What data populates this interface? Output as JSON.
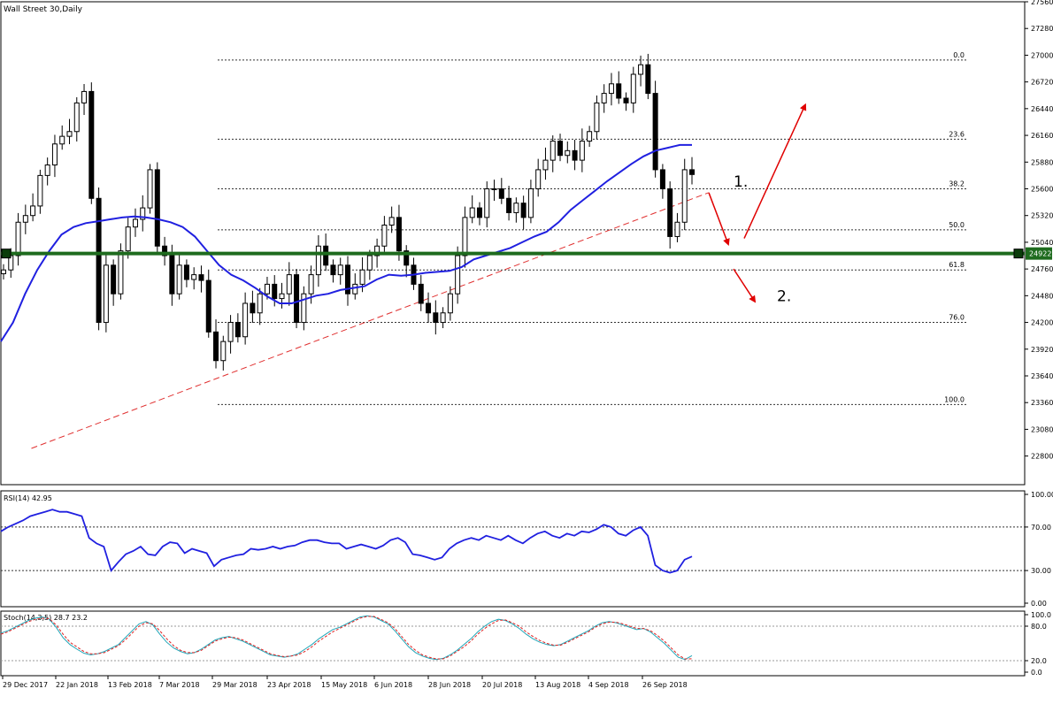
{
  "chart_data": [
    {
      "type": "candlestick",
      "title": "Wall Street 30,Daily",
      "ylim": [
        22500,
        27560
      ],
      "y_ticks": [
        27560,
        27280,
        27000,
        26720,
        26440,
        26160,
        25880,
        25600,
        25320,
        25040,
        24760,
        24480,
        24200,
        23920,
        23640,
        23360,
        23080,
        22800
      ],
      "x_ticks": [
        "29 Dec 2017",
        "22 Jan 2018",
        "13 Feb 2018",
        "7 Mar 2018",
        "29 Mar 2018",
        "23 Apr 2018",
        "15 May 2018",
        "6 Jun 2018",
        "28 Jun 2018",
        "20 Jul 2018",
        "13 Aug 2018",
        "4 Sep 2018",
        "26 Sep 2018"
      ],
      "current_price": 24922,
      "support_line": 24922,
      "trendline": {
        "from": {
          "date": "11 Jan 2018",
          "price": 22880
        },
        "to": {
          "date": "23 Oct 2018",
          "price": 25560
        }
      },
      "fibonacci": [
        {
          "label": "0.0",
          "price": 26950
        },
        {
          "label": "23.6",
          "price": 26120
        },
        {
          "label": "38.2",
          "price": 25600
        },
        {
          "label": "50.0",
          "price": 25170
        },
        {
          "label": "61.8",
          "price": 24750
        },
        {
          "label": "76.0",
          "price": 24200
        },
        {
          "label": "100.0",
          "price": 23340
        }
      ],
      "annotations": [
        {
          "text": "1.",
          "price": 25680
        },
        {
          "text": "2.",
          "price": 24480
        }
      ],
      "series": [
        {
          "kind": "close",
          "values": [
            24750,
            24900,
            25250,
            25320,
            25420,
            25740,
            25850,
            26070,
            26150,
            26200,
            26500,
            26620,
            25500,
            24200,
            24800,
            24500,
            24950,
            25200,
            25280,
            25400,
            25800,
            25000,
            24900,
            24500,
            24800,
            24650,
            24700,
            24640,
            24100,
            23800,
            24000,
            24200,
            24050,
            24400,
            24300,
            24500,
            24600,
            24450,
            24500,
            24700,
            24200,
            24500,
            24700,
            25000,
            24800,
            24700,
            24800,
            24500,
            24600,
            24750,
            24900,
            25000,
            25220,
            25300,
            24950,
            24800,
            24600,
            24400,
            24300,
            24200,
            24300,
            24500,
            24900,
            25300,
            25400,
            25300,
            25600,
            25600,
            25500,
            25350,
            25450,
            25300,
            25600,
            25800,
            25900,
            26100,
            25950,
            26000,
            25900,
            26100,
            26200,
            26500,
            26600,
            26700,
            26550,
            26500,
            26800,
            26900,
            26600,
            25800,
            25600,
            25100,
            25250,
            25800,
            25750
          ]
        },
        {
          "kind": "ma",
          "values": [
            24000,
            24200,
            24500,
            24750,
            24950,
            25120,
            25200,
            25240,
            25260,
            25280,
            25300,
            25310,
            25300,
            25280,
            25250,
            25200,
            25100,
            24950,
            24800,
            24700,
            24640,
            24560,
            24470,
            24400,
            24400,
            24440,
            24480,
            24500,
            24540,
            24560,
            24580,
            24650,
            24700,
            24690,
            24700,
            24720,
            24730,
            24740,
            24780,
            24860,
            24900,
            24940,
            24980,
            25040,
            25100,
            25150,
            25250,
            25380,
            25480,
            25580,
            25680,
            25770,
            25860,
            25940,
            26000,
            26030,
            26060,
            26060
          ]
        }
      ]
    },
    {
      "type": "line",
      "title": "RSI(14) 42.95",
      "ylim": [
        0,
        100
      ],
      "y_ticks": [
        100,
        70,
        30,
        0
      ],
      "y_tick_labels": [
        "100.00",
        "70.00",
        "30.00",
        "0.00"
      ],
      "levels": [
        70,
        30
      ],
      "series": [
        {
          "values": [
            66,
            70,
            73,
            76,
            80,
            82,
            84,
            86,
            84,
            84,
            82,
            80,
            60,
            55,
            52,
            30,
            38,
            45,
            48,
            52,
            45,
            44,
            52,
            56,
            55,
            46,
            50,
            48,
            46,
            34,
            40,
            42,
            44,
            45,
            50,
            49,
            50,
            52,
            50,
            52,
            53,
            56,
            58,
            58,
            56,
            55,
            55,
            50,
            52,
            54,
            52,
            50,
            53,
            58,
            60,
            56,
            45,
            44,
            42,
            40,
            42,
            50,
            55,
            58,
            60,
            58,
            62,
            60,
            58,
            62,
            58,
            55,
            60,
            64,
            66,
            62,
            60,
            64,
            62,
            66,
            65,
            68,
            72,
            70,
            64,
            62,
            67,
            70,
            62,
            35,
            30,
            28,
            30,
            40,
            42.95
          ]
        }
      ]
    },
    {
      "type": "line",
      "title": "Stoch(14,3,5) 28.7 23.2",
      "ylim": [
        0,
        100
      ],
      "y_ticks": [
        100,
        80,
        20,
        0
      ],
      "y_tick_labels": [
        "100.0",
        "80.0",
        "20.0",
        "0.0"
      ],
      "levels": [
        80,
        20
      ],
      "series": [
        {
          "name": "main",
          "color": "#21a6b8",
          "values": [
            68,
            72,
            78,
            84,
            90,
            94,
            96,
            92,
            78,
            60,
            48,
            40,
            33,
            30,
            32,
            36,
            42,
            48,
            60,
            72,
            84,
            88,
            82,
            66,
            52,
            42,
            36,
            32,
            34,
            40,
            48,
            56,
            60,
            62,
            58,
            54,
            48,
            42,
            36,
            30,
            28,
            26,
            28,
            32,
            40,
            48,
            58,
            66,
            74,
            78,
            84,
            90,
            96,
            98,
            96,
            90,
            84,
            72,
            58,
            44,
            34,
            28,
            24,
            22,
            24,
            30,
            38,
            48,
            58,
            70,
            80,
            88,
            92,
            90,
            84,
            76,
            66,
            58,
            52,
            48,
            46,
            48,
            54,
            60,
            66,
            72,
            80,
            86,
            88,
            86,
            82,
            78,
            74,
            76,
            70,
            60,
            50,
            38,
            26,
            22,
            28.7
          ]
        },
        {
          "name": "signal",
          "color": "#e02020",
          "values": [
            66,
            70,
            76,
            82,
            88,
            92,
            94,
            93,
            82,
            66,
            52,
            44,
            36,
            32,
            32,
            34,
            40,
            46,
            56,
            68,
            80,
            86,
            84,
            72,
            58,
            46,
            38,
            34,
            34,
            38,
            46,
            54,
            58,
            61,
            60,
            56,
            50,
            44,
            38,
            32,
            29,
            27,
            28,
            30,
            36,
            44,
            54,
            62,
            70,
            76,
            82,
            88,
            94,
            97,
            97,
            92,
            86,
            76,
            62,
            48,
            38,
            30,
            26,
            23,
            23,
            28,
            36,
            44,
            54,
            66,
            76,
            84,
            90,
            91,
            86,
            80,
            70,
            62,
            55,
            50,
            47,
            47,
            52,
            58,
            64,
            70,
            78,
            84,
            87,
            87,
            84,
            80,
            76,
            76,
            72,
            64,
            54,
            42,
            30,
            23,
            23.2
          ]
        }
      ]
    }
  ]
}
